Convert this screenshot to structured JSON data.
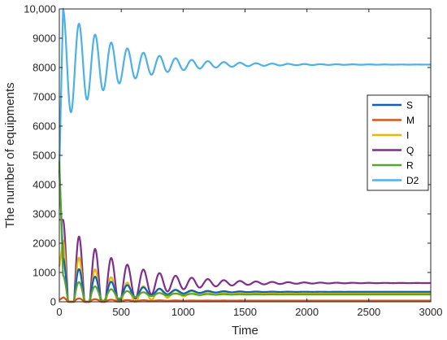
{
  "chart_data": {
    "type": "line",
    "title": "",
    "xlabel": "Time",
    "ylabel": "The number of equipments",
    "xlim": [
      0,
      3000
    ],
    "ylim": [
      0,
      10000
    ],
    "x_ticks": [
      0,
      500,
      1000,
      1500,
      2000,
      2500,
      3000
    ],
    "x_tick_labels": [
      "0",
      "500",
      "1000",
      "1500",
      "2000",
      "2500",
      "3000"
    ],
    "y_ticks": [
      0,
      1000,
      2000,
      3000,
      4000,
      5000,
      6000,
      7000,
      8000,
      9000,
      10000
    ],
    "y_tick_labels": [
      "0",
      "1000",
      "2000",
      "3000",
      "4000",
      "5000",
      "6000",
      "7000",
      "8000",
      "9000",
      "10,000"
    ],
    "grid": false,
    "legend_position": "right",
    "series": [
      {
        "name": "S",
        "color": "#0d5fb8",
        "x0": 4500,
        "peak": 1500,
        "period": 130,
        "amp": 1300,
        "decay": 320,
        "eq": 340
      },
      {
        "name": "M",
        "color": "#d95319",
        "x0": 60,
        "peak": 150,
        "period": 130,
        "amp": 60,
        "decay": 300,
        "eq": 40
      },
      {
        "name": "I",
        "color": "#e6b800",
        "x0": 1200,
        "peak": 2100,
        "period": 130,
        "amp": 1700,
        "decay": 330,
        "eq": 280
      },
      {
        "name": "Q",
        "color": "#7e2f8e",
        "x0": 2800,
        "peak": 2800,
        "period": 130,
        "amp": 1100,
        "decay": 420,
        "eq": 640
      },
      {
        "name": "R",
        "color": "#55a630",
        "x0": 4800,
        "peak": 900,
        "period": 130,
        "amp": 600,
        "decay": 300,
        "eq": 250
      },
      {
        "name": "D2",
        "color": "#4db0e8",
        "x0": 4500,
        "peak": 10000,
        "period": 130,
        "amp": 2500,
        "decay": 420,
        "eq": 8100
      }
    ]
  }
}
